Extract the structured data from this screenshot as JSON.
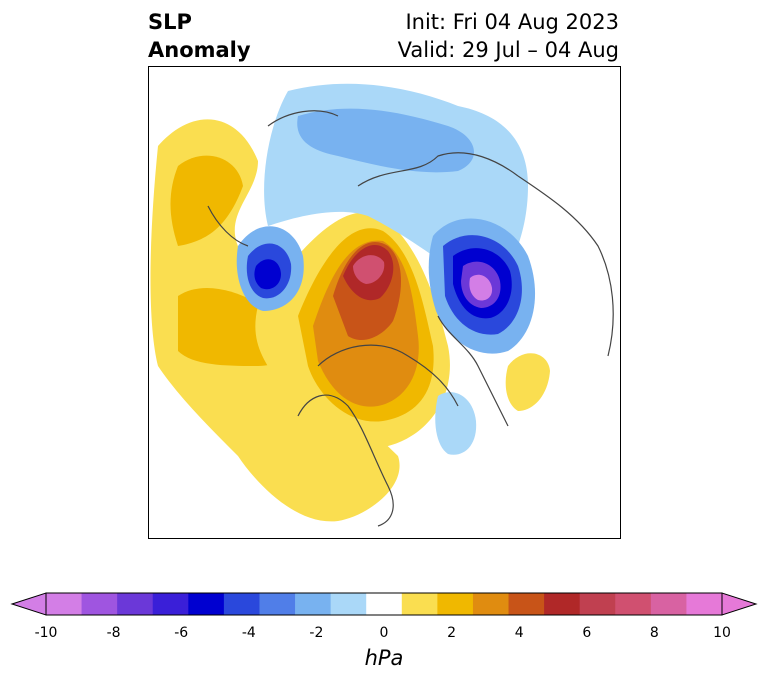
{
  "title": {
    "left_line1": "SLP",
    "left_line2": "Anomaly",
    "right_line1": "Init: Fri 04 Aug 2023",
    "right_line2": "Valid: 29 Jul – 04 Aug"
  },
  "colorbar": {
    "unit": "hPa",
    "ticks": [
      "-10",
      "-8",
      "-6",
      "-4",
      "-2",
      "0",
      "2",
      "4",
      "6",
      "8",
      "10"
    ],
    "colors": [
      "#d37ee6",
      "#9f55e0",
      "#6b38d8",
      "#3a1fd8",
      "#0000d0",
      "#2a48dc",
      "#507ee8",
      "#78b2f0",
      "#aad8f8",
      "#ffffff",
      "#fade50",
      "#f0b800",
      "#e08c10",
      "#c85418",
      "#b02828",
      "#c04050",
      "#d05070",
      "#d862a2",
      "#e679d8"
    ]
  },
  "map": {
    "type": "polar-stereographic anomaly contour map",
    "anomalies": [
      {
        "sign": "positive",
        "peak_hPa": 8,
        "location": "north-central Canada / Arctic Archipelago"
      },
      {
        "sign": "negative",
        "peak_hPa": -10,
        "location": "Barents / Kara Sea region"
      },
      {
        "sign": "negative",
        "peak_hPa": -6,
        "location": "East Siberian / Chukchi region"
      },
      {
        "sign": "positive",
        "peak_hPa": 3,
        "location": "North Pacific"
      }
    ]
  }
}
